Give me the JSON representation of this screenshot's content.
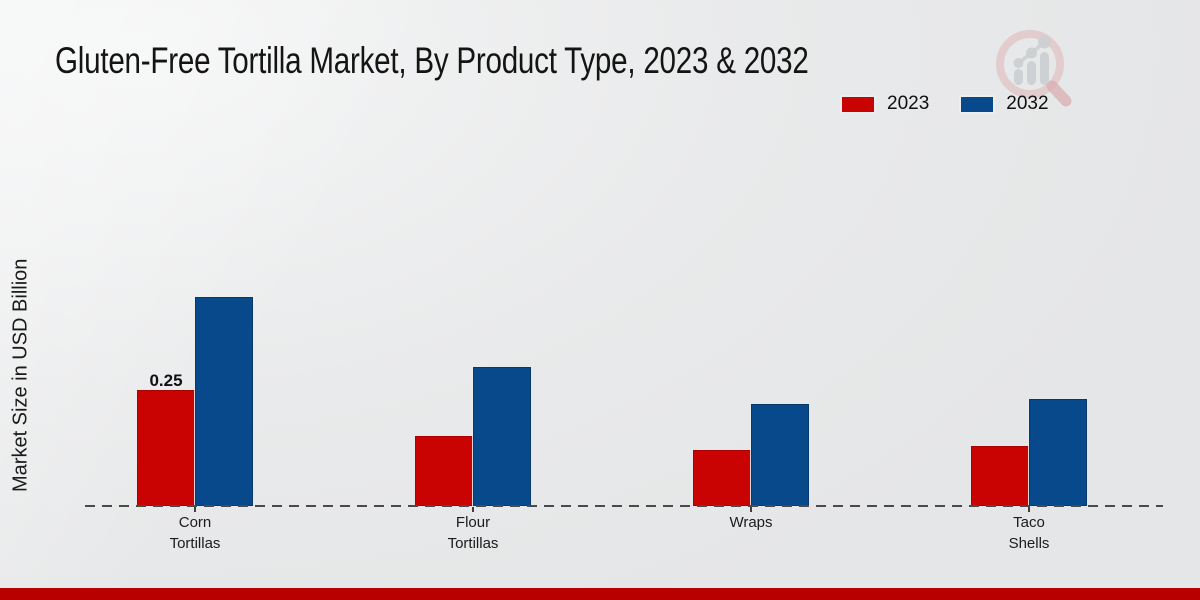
{
  "title": "Gluten-Free Tortilla Market, By Product Type, 2023 & 2032",
  "y_axis_label": "Market Size in USD Billion",
  "legend": {
    "position": "top-right",
    "items": [
      {
        "label": "2023",
        "color": "#c90202"
      },
      {
        "label": "2032",
        "color": "#07498a"
      }
    ]
  },
  "chart_data": {
    "type": "bar",
    "title": "Gluten-Free Tortilla Market, By Product Type, 2023 & 2032",
    "xlabel": "",
    "ylabel": "Market Size in USD Billion",
    "categories": [
      "Corn Tortillas",
      "Flour Tortillas",
      "Wraps",
      "Taco Shells"
    ],
    "category_display_lines": [
      [
        "Corn",
        "Tortillas"
      ],
      [
        "Flour",
        "Tortillas"
      ],
      [
        "Wraps"
      ],
      [
        "Taco",
        "Shells"
      ]
    ],
    "series": [
      {
        "name": "2023",
        "color": "#c90202",
        "values": [
          0.25,
          0.15,
          0.12,
          0.13
        ]
      },
      {
        "name": "2032",
        "color": "#07498a",
        "values": [
          0.45,
          0.3,
          0.22,
          0.23
        ]
      }
    ],
    "data_labels": [
      {
        "series": "2023",
        "category": "Corn Tortillas",
        "text": "0.25"
      }
    ],
    "ylim": [
      0,
      0.5
    ],
    "grid": false,
    "y_axis_ticks_visible": false,
    "baseline_style": "dashed",
    "legend_position": "top-right"
  },
  "colors": {
    "series_2023": "#c90202",
    "series_2032": "#07498a",
    "footer_bar": "#b80000",
    "baseline": "#4a4a4a",
    "title_text": "#141414",
    "background": "#eaebec",
    "watermark_ring": "#dfb9ba",
    "watermark_bars": "#cdd0d2"
  },
  "footer": {
    "note": ""
  }
}
